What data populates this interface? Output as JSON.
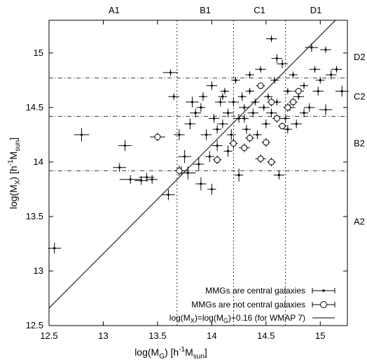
{
  "chart_data": {
    "type": "scatter",
    "title": "",
    "xlabel": {
      "pre": "log(M",
      "sub1": "G",
      "mid": ") [h",
      "sup": "-1",
      "mid2": "M",
      "sub2": "sun",
      "post": "]"
    },
    "ylabel": {
      "pre": "log(M",
      "sub1": "X",
      "mid": ") [h",
      "sup": "-1",
      "mid2": "M",
      "sub2": "sun",
      "post": "]"
    },
    "xlim": [
      12.5,
      15.25
    ],
    "ylim": [
      12.5,
      15.3
    ],
    "xticks": [
      "12.5",
      "13",
      "13.5",
      "14",
      "14.5",
      "15"
    ],
    "xtick_values": [
      12.5,
      13.0,
      13.5,
      14.0,
      14.5,
      15.0
    ],
    "yticks": [
      "12.5",
      "13",
      "13.5",
      "14",
      "14.5",
      "15"
    ],
    "ytick_values": [
      12.5,
      13.0,
      13.5,
      14.0,
      14.5,
      15.0
    ],
    "region_lines_x": [
      13.68,
      14.2,
      14.68
    ],
    "region_lines_y": [
      13.92,
      14.42,
      14.77
    ],
    "top_labels": [
      {
        "text": "A1",
        "x": 13.1
      },
      {
        "text": "B1",
        "x": 13.94
      },
      {
        "text": "C1",
        "x": 14.44
      },
      {
        "text": "D1",
        "x": 14.96
      }
    ],
    "right_labels": [
      {
        "text": "D2",
        "y": 14.96
      },
      {
        "text": "C2",
        "y": 14.6
      },
      {
        "text": "B2",
        "y": 14.17
      },
      {
        "text": "A2",
        "y": 13.45
      }
    ],
    "legend": {
      "position": "bottom-right",
      "entries": [
        {
          "label": "MMGs are central galaxies",
          "marker": "dot"
        },
        {
          "label": "MMGs are not central galaxies",
          "marker": "circle"
        },
        {
          "label": "log(M_X)=log(M_G)+0.16 (for WMAP 7)",
          "marker": "line",
          "parts": {
            "a": "log(M",
            "b": "X",
            "c": ")=log(M",
            "d": "G",
            "e": ")+0.16 (for WMAP 7)"
          }
        }
      ]
    },
    "fit_line": {
      "slope": 1,
      "intercept": 0.16
    },
    "series": [
      {
        "name": "MMGs are central galaxies",
        "marker": "dot",
        "points": [
          [
            12.55,
            13.21,
            0.06,
            0.05
          ],
          [
            12.8,
            14.25,
            0.07,
            0.06
          ],
          [
            13.2,
            14.15,
            0.06,
            0.05
          ],
          [
            13.15,
            13.95,
            0.06,
            0.04
          ],
          [
            13.25,
            13.84,
            0.1,
            0.04
          ],
          [
            13.35,
            13.83,
            0.06,
            0.04
          ],
          [
            13.4,
            13.86,
            0.07,
            0.04
          ],
          [
            13.45,
            13.84,
            0.05,
            0.04
          ],
          [
            13.6,
            13.7,
            0.06,
            0.05
          ],
          [
            13.62,
            14.82,
            0.07,
            0.03
          ],
          [
            13.65,
            14.6,
            0.05,
            0.03
          ],
          [
            13.7,
            14.25,
            0.05,
            0.05
          ],
          [
            13.72,
            13.92,
            0.05,
            0.04
          ],
          [
            13.75,
            14.05,
            0.06,
            0.06
          ],
          [
            13.78,
            13.9,
            0.07,
            0.06
          ],
          [
            13.8,
            14.35,
            0.05,
            0.05
          ],
          [
            13.82,
            14.55,
            0.06,
            0.05
          ],
          [
            13.85,
            14.45,
            0.05,
            0.04
          ],
          [
            13.88,
            13.98,
            0.05,
            0.06
          ],
          [
            13.9,
            13.8,
            0.05,
            0.06
          ],
          [
            13.92,
            14.6,
            0.04,
            0.04
          ],
          [
            13.95,
            14.25,
            0.05,
            0.05
          ],
          [
            13.98,
            14.05,
            0.04,
            0.05
          ],
          [
            14.0,
            13.75,
            0.04,
            0.05
          ],
          [
            14.0,
            14.7,
            0.05,
            0.04
          ],
          [
            14.02,
            14.4,
            0.05,
            0.04
          ],
          [
            14.05,
            14.15,
            0.05,
            0.05
          ],
          [
            14.08,
            14.55,
            0.05,
            0.04
          ],
          [
            14.1,
            14.35,
            0.05,
            0.04
          ],
          [
            14.12,
            14.65,
            0.04,
            0.03
          ],
          [
            14.15,
            14.45,
            0.05,
            0.04
          ],
          [
            14.18,
            14.25,
            0.04,
            0.05
          ],
          [
            14.2,
            14.55,
            0.05,
            0.04
          ],
          [
            14.22,
            14.75,
            0.04,
            0.03
          ],
          [
            14.25,
            14.4,
            0.05,
            0.04
          ],
          [
            14.25,
            13.88,
            0.04,
            0.06
          ],
          [
            14.28,
            14.6,
            0.04,
            0.04
          ],
          [
            14.3,
            14.5,
            0.05,
            0.03
          ],
          [
            14.32,
            14.3,
            0.04,
            0.04
          ],
          [
            14.35,
            14.65,
            0.04,
            0.03
          ],
          [
            14.38,
            14.45,
            0.05,
            0.04
          ],
          [
            14.4,
            14.55,
            0.04,
            0.03
          ],
          [
            14.42,
            14.25,
            0.04,
            0.04
          ],
          [
            14.45,
            14.7,
            0.04,
            0.03
          ],
          [
            14.48,
            14.5,
            0.05,
            0.03
          ],
          [
            14.5,
            14.35,
            0.04,
            0.04
          ],
          [
            14.52,
            14.6,
            0.04,
            0.03
          ],
          [
            14.55,
            15.13,
            0.05,
            0.03
          ],
          [
            14.55,
            14.45,
            0.05,
            0.04
          ],
          [
            14.58,
            14.75,
            0.04,
            0.03
          ],
          [
            14.6,
            14.55,
            0.04,
            0.03
          ],
          [
            14.62,
            13.88,
            0.05,
            0.04
          ],
          [
            14.65,
            14.9,
            0.05,
            0.04
          ],
          [
            14.68,
            14.4,
            0.04,
            0.04
          ],
          [
            14.7,
            14.65,
            0.04,
            0.03
          ],
          [
            14.72,
            14.5,
            0.05,
            0.03
          ],
          [
            14.75,
            14.8,
            0.04,
            0.03
          ],
          [
            14.78,
            14.35,
            0.05,
            0.04
          ],
          [
            14.8,
            14.6,
            0.05,
            0.03
          ],
          [
            14.85,
            14.7,
            0.04,
            0.03
          ],
          [
            14.9,
            14.5,
            0.05,
            0.04
          ],
          [
            14.92,
            15.05,
            0.06,
            0.04
          ],
          [
            14.95,
            14.85,
            0.05,
            0.03
          ],
          [
            14.98,
            14.65,
            0.05,
            0.04
          ],
          [
            15.0,
            14.75,
            0.04,
            0.03
          ],
          [
            15.05,
            14.48,
            0.06,
            0.05
          ],
          [
            15.05,
            15.03,
            0.05,
            0.03
          ],
          [
            15.1,
            14.8,
            0.05,
            0.04
          ],
          [
            15.15,
            14.85,
            0.05,
            0.03
          ],
          [
            15.2,
            14.65,
            0.06,
            0.05
          ],
          [
            14.1,
            14.6,
            0.04,
            0.03
          ],
          [
            14.3,
            14.4,
            0.04,
            0.04
          ],
          [
            14.45,
            14.85,
            0.05,
            0.03
          ],
          [
            14.6,
            14.95,
            0.05,
            0.04
          ],
          [
            13.9,
            14.5,
            0.04,
            0.04
          ],
          [
            14.05,
            14.3,
            0.04,
            0.04
          ],
          [
            14.35,
            14.8,
            0.04,
            0.03
          ],
          [
            14.15,
            14.1,
            0.04,
            0.05
          ],
          [
            14.7,
            14.3,
            0.04,
            0.04
          ],
          [
            14.85,
            14.45,
            0.04,
            0.04
          ]
        ]
      },
      {
        "name": "MMGs are not central galaxies",
        "marker": "circle",
        "points": [
          [
            13.5,
            14.23,
            0.07,
            0.04
          ],
          [
            13.7,
            13.92,
            0.05,
            0.05
          ],
          [
            14.05,
            14.02,
            0.04,
            0.04
          ],
          [
            14.2,
            14.17,
            0.04,
            0.05
          ],
          [
            14.3,
            14.13,
            0.05,
            0.04
          ],
          [
            14.35,
            14.22,
            0.04,
            0.04
          ],
          [
            14.45,
            14.03,
            0.05,
            0.04
          ],
          [
            14.5,
            14.18,
            0.04,
            0.04
          ],
          [
            14.55,
            14.0,
            0.04,
            0.04
          ],
          [
            14.6,
            14.4,
            0.04,
            0.04
          ],
          [
            14.65,
            14.33,
            0.04,
            0.03
          ],
          [
            14.7,
            14.5,
            0.04,
            0.04
          ],
          [
            14.75,
            14.55,
            0.04,
            0.04
          ],
          [
            14.8,
            14.65,
            0.05,
            0.03
          ],
          [
            14.45,
            14.7,
            0.04,
            0.03
          ],
          [
            14.55,
            14.55,
            0.04,
            0.04
          ]
        ]
      }
    ]
  }
}
